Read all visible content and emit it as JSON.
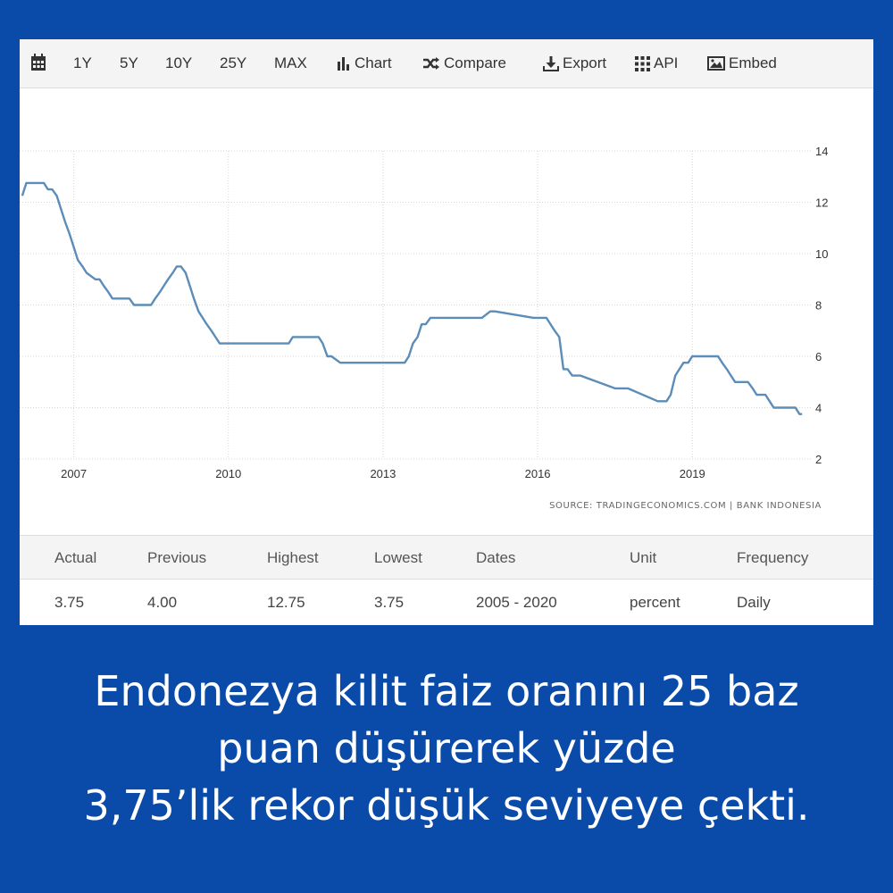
{
  "toolbar": {
    "items": [
      {
        "label": "",
        "icon": "calendar-icon"
      },
      {
        "label": "1Y"
      },
      {
        "label": "5Y"
      },
      {
        "label": "10Y"
      },
      {
        "label": "25Y"
      },
      {
        "label": "MAX"
      },
      {
        "label": "Chart",
        "icon": "bar-chart-icon"
      },
      {
        "label": "Compare",
        "icon": "shuffle-icon"
      },
      {
        "label": "Export",
        "icon": "download-icon"
      },
      {
        "label": "API",
        "icon": "grid-icon"
      },
      {
        "label": "Embed",
        "icon": "image-icon"
      }
    ]
  },
  "chart_data": {
    "type": "line",
    "source_note": "SOURCE: TRADINGECONOMICS.COM | BANK INDONESIA",
    "xlabel": "",
    "ylabel": "",
    "xlim": [
      2005.95,
      2021.3
    ],
    "ylim": [
      2,
      14
    ],
    "x_ticks": [
      2007,
      2010,
      2013,
      2016,
      2019
    ],
    "y_ticks": [
      2,
      4,
      6,
      8,
      10,
      12,
      14
    ],
    "grid": true,
    "line_color": "#5b8db8",
    "series": [
      {
        "x": [
          2006.0,
          2006.08,
          2006.42,
          2006.5,
          2006.58,
          2006.67,
          2006.75,
          2006.83,
          2006.92,
          2007.0,
          2007.08,
          2007.17,
          2007.25,
          2007.42,
          2007.5,
          2007.58,
          2007.67,
          2007.75,
          2007.83,
          2008.0,
          2008.08,
          2008.17,
          2008.25,
          2008.33,
          2008.42,
          2008.5,
          2008.58,
          2008.67,
          2008.75,
          2008.83,
          2008.92,
          2009.0,
          2009.08,
          2009.17,
          2009.25,
          2009.33,
          2009.42,
          2009.5,
          2009.58,
          2009.67,
          2009.75,
          2009.83,
          2011.08,
          2011.17,
          2011.25,
          2011.75,
          2011.83,
          2011.92,
          2012.0,
          2012.17,
          2012.25,
          2012.33,
          2013.42,
          2013.5,
          2013.58,
          2013.67,
          2013.75,
          2013.83,
          2013.92,
          2014.0,
          2014.08,
          2014.83,
          2014.92,
          2015.08,
          2015.17,
          2015.92,
          2016.0,
          2016.17,
          2016.25,
          2016.33,
          2016.42,
          2016.5,
          2016.58,
          2016.67,
          2016.75,
          2016.83,
          2017.5,
          2017.58,
          2017.67,
          2017.75,
          2018.33,
          2018.42,
          2018.5,
          2018.58,
          2018.67,
          2018.75,
          2018.83,
          2018.92,
          2019.0,
          2019.5,
          2019.58,
          2019.67,
          2019.75,
          2019.83,
          2020.08,
          2020.17,
          2020.25,
          2020.42,
          2020.5,
          2020.58,
          2020.92,
          2021.0,
          2021.08,
          2021.13
        ],
        "y": [
          12.25,
          12.75,
          12.75,
          12.5,
          12.5,
          12.25,
          11.75,
          11.25,
          10.75,
          10.25,
          9.75,
          9.5,
          9.25,
          9.0,
          9.0,
          8.75,
          8.5,
          8.25,
          8.25,
          8.25,
          8.25,
          8.0,
          8.0,
          8.0,
          8.0,
          8.0,
          8.25,
          8.5,
          8.75,
          9.0,
          9.25,
          9.5,
          9.5,
          9.25,
          8.75,
          8.25,
          7.75,
          7.5,
          7.25,
          7.0,
          6.75,
          6.5,
          6.5,
          6.5,
          6.75,
          6.75,
          6.5,
          6.0,
          6.0,
          5.75,
          5.75,
          5.75,
          5.75,
          6.0,
          6.5,
          6.75,
          7.25,
          7.25,
          7.5,
          7.5,
          7.5,
          7.5,
          7.5,
          7.75,
          7.75,
          7.5,
          7.5,
          7.5,
          7.25,
          7.0,
          6.75,
          5.5,
          5.5,
          5.25,
          5.25,
          5.25,
          4.75,
          4.75,
          4.75,
          4.75,
          4.25,
          4.25,
          4.25,
          4.5,
          5.25,
          5.5,
          5.75,
          5.75,
          6.0,
          6.0,
          5.75,
          5.5,
          5.25,
          5.0,
          5.0,
          4.75,
          4.5,
          4.5,
          4.25,
          4.0,
          4.0,
          4.0,
          3.75,
          3.75
        ]
      }
    ]
  },
  "stats": {
    "headers": [
      "Actual",
      "Previous",
      "Highest",
      "Lowest",
      "Dates",
      "Unit",
      "Frequency"
    ],
    "values": [
      "3.75",
      "4.00",
      "12.75",
      "3.75",
      "2005 - 2020",
      "percent",
      "Daily"
    ]
  },
  "caption": {
    "lines": [
      "Endonezya kilit faiz oranını 25 baz",
      "puan düşürerek yüzde",
      "3,75’lik rekor düşük seviyeye çekti."
    ]
  }
}
